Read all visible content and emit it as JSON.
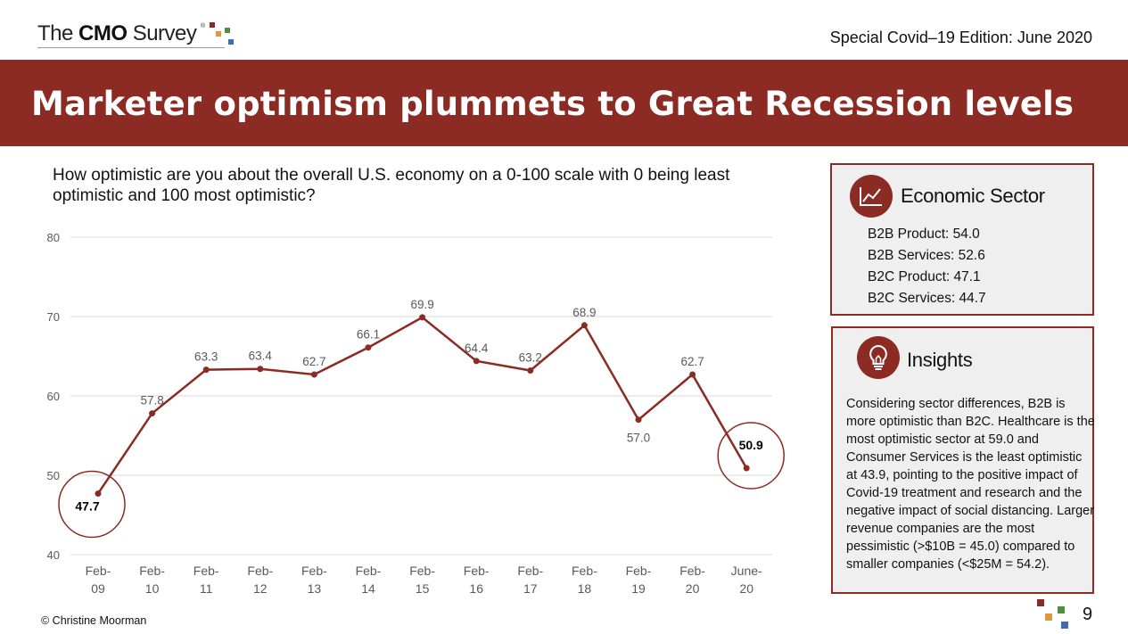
{
  "header": {
    "logo_prefix": "The",
    "logo_bold": "CMO",
    "logo_suffix": "Survey",
    "logo_reg": "®",
    "edition": "Special Covid–19 Edition: June 2020"
  },
  "banner": {
    "title": "Marketer optimism plummets to Great Recession levels"
  },
  "question": "How optimistic are you about the overall U.S. economy on a 0-100 scale with 0 being least optimistic and 100 most optimistic?",
  "chart_data": {
    "type": "line",
    "title": "",
    "xlabel": "",
    "ylabel": "",
    "categories": [
      "Feb-09",
      "Feb-10",
      "Feb-11",
      "Feb-12",
      "Feb-13",
      "Feb-14",
      "Feb-15",
      "Feb-16",
      "Feb-17",
      "Feb-18",
      "Feb-19",
      "Feb-20",
      "June-20"
    ],
    "category_lines": [
      [
        "Feb-",
        "09"
      ],
      [
        "Feb-",
        "10"
      ],
      [
        "Feb-",
        "11"
      ],
      [
        "Feb-",
        "12"
      ],
      [
        "Feb-",
        "13"
      ],
      [
        "Feb-",
        "14"
      ],
      [
        "Feb-",
        "15"
      ],
      [
        "Feb-",
        "16"
      ],
      [
        "Feb-",
        "17"
      ],
      [
        "Feb-",
        "18"
      ],
      [
        "Feb-",
        "19"
      ],
      [
        "Feb-",
        "20"
      ],
      [
        "June-",
        "20"
      ]
    ],
    "values": [
      47.7,
      57.8,
      63.3,
      63.4,
      62.7,
      66.1,
      69.9,
      64.4,
      63.2,
      68.9,
      57.0,
      62.7,
      50.9
    ],
    "labels": [
      "47.7",
      "57.8",
      "63.3",
      "63.4",
      "62.7",
      "66.1",
      "69.9",
      "64.4",
      "63.2",
      "68.9",
      "57.0",
      "62.7",
      "50.9"
    ],
    "ylim": [
      40,
      80
    ],
    "yticks": [
      40,
      50,
      60,
      70,
      80
    ],
    "grid": true,
    "highlighted_points": [
      0,
      12
    ],
    "line_color": "#8b2b24",
    "grid_color": "#d9d9d9",
    "label_color": "#595959"
  },
  "sector": {
    "title": "Economic Sector",
    "icon": "line-chart-icon",
    "items": [
      "B2B Product: 54.0",
      "B2B Services: 52.6",
      "B2C Product: 47.1",
      "B2C Services: 44.7"
    ]
  },
  "insights": {
    "title": "Insights",
    "icon": "lightbulb-icon",
    "text": "Considering sector differences, B2B is more optimistic than B2C. Healthcare is the most optimistic sector at 59.0 and Consumer Services is the least optimistic at 43.9, pointing to the positive impact of Covid-19 treatment and research and the negative impact of social distancing. Larger revenue companies are the most pessimistic (>$10B = 45.0) compared to smaller companies (<$25M = 54.2)."
  },
  "footer": {
    "copyright": "© Christine Moorman",
    "page": "9"
  },
  "colors": {
    "accent": "#8b2b24",
    "logo_squares": [
      "#8b2b24",
      "#e0963a",
      "#4f8f3f",
      "#3f6bb0"
    ]
  }
}
